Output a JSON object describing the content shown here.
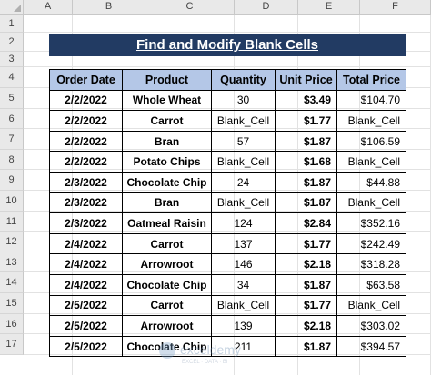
{
  "columns": [
    "A",
    "B",
    "C",
    "D",
    "E",
    "F"
  ],
  "rows": [
    "1",
    "2",
    "3",
    "4",
    "5",
    "6",
    "7",
    "8",
    "9",
    "10",
    "11",
    "12",
    "13",
    "14",
    "15",
    "16",
    "17"
  ],
  "title": "Find and Modify Blank Cells",
  "headers": [
    "Order Date",
    "Product",
    "Quantity",
    "Unit Price",
    "Total Price"
  ],
  "records": [
    [
      "2/2/2022",
      "Whole Wheat",
      "30",
      "$3.49",
      "$104.70"
    ],
    [
      "2/2/2022",
      "Carrot",
      "Blank_Cell",
      "$1.77",
      "Blank_Cell"
    ],
    [
      "2/2/2022",
      "Bran",
      "57",
      "$1.87",
      "$106.59"
    ],
    [
      "2/2/2022",
      "Potato Chips",
      "Blank_Cell",
      "$1.68",
      "Blank_Cell"
    ],
    [
      "2/3/2022",
      "Chocolate Chip",
      "24",
      "$1.87",
      "$44.88"
    ],
    [
      "2/3/2022",
      "Bran",
      "Blank_Cell",
      "$1.87",
      "Blank_Cell"
    ],
    [
      "2/3/2022",
      "Oatmeal Raisin",
      "124",
      "$2.84",
      "$352.16"
    ],
    [
      "2/4/2022",
      "Carrot",
      "137",
      "$1.77",
      "$242.49"
    ],
    [
      "2/4/2022",
      "Arrowroot",
      "146",
      "$2.18",
      "$318.28"
    ],
    [
      "2/4/2022",
      "Chocolate Chip",
      "34",
      "$1.87",
      "$63.58"
    ],
    [
      "2/5/2022",
      "Carrot",
      "Blank_Cell",
      "$1.77",
      "Blank_Cell"
    ],
    [
      "2/5/2022",
      "Arrowroot",
      "139",
      "$2.18",
      "$303.02"
    ],
    [
      "2/5/2022",
      "Chocolate Chip",
      "211",
      "$1.87",
      "$394.57"
    ]
  ],
  "watermark_text": "exceldemy",
  "watermark_subtext": "EXCEL · DATA · BI"
}
